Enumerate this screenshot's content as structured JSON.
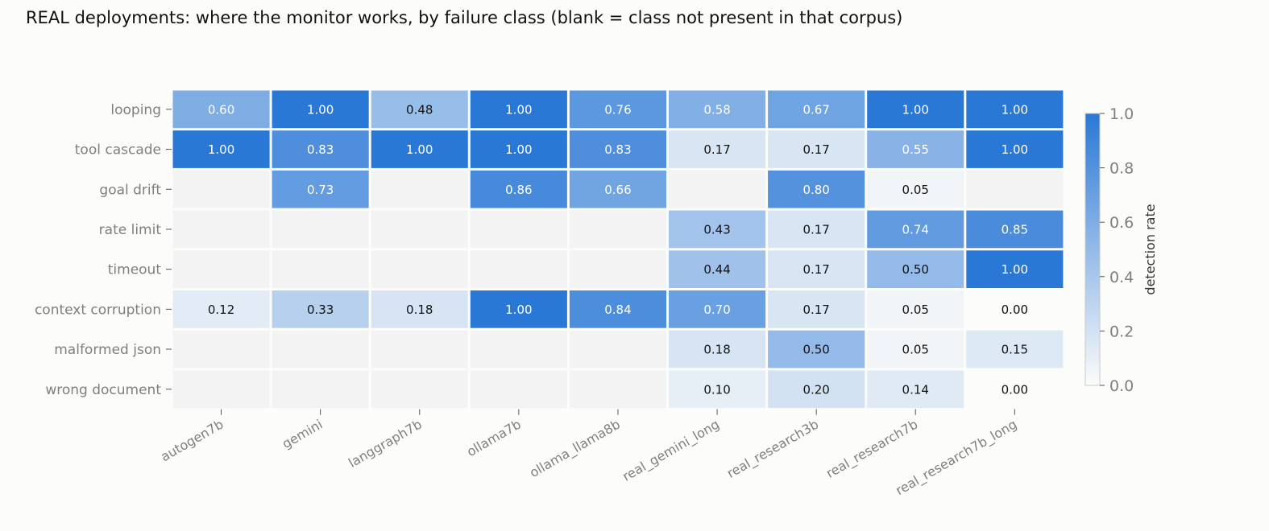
{
  "chart_data": {
    "type": "heatmap",
    "title": "REAL deployments: where the monitor works, by failure class (blank = class not present in that corpus)",
    "rows": [
      "looping",
      "tool cascade",
      "goal drift",
      "rate limit",
      "timeout",
      "context corruption",
      "malformed json",
      "wrong document"
    ],
    "columns": [
      "autogen7b",
      "gemini",
      "langgraph7b",
      "ollama7b",
      "ollama_llama8b",
      "real_gemini_long",
      "real_research3b",
      "real_research7b",
      "real_research7b_long"
    ],
    "values": [
      [
        0.6,
        1.0,
        0.48,
        1.0,
        0.76,
        0.58,
        0.67,
        1.0,
        1.0
      ],
      [
        1.0,
        0.83,
        1.0,
        1.0,
        0.83,
        0.17,
        0.17,
        0.55,
        1.0
      ],
      [
        null,
        0.73,
        null,
        0.86,
        0.66,
        null,
        0.8,
        0.05,
        null
      ],
      [
        null,
        null,
        null,
        null,
        null,
        0.43,
        0.17,
        0.74,
        0.85
      ],
      [
        null,
        null,
        null,
        null,
        null,
        0.44,
        0.17,
        0.5,
        1.0
      ],
      [
        0.12,
        0.33,
        0.18,
        1.0,
        0.84,
        0.7,
        0.17,
        0.05,
        0.0
      ],
      [
        null,
        null,
        null,
        null,
        null,
        0.18,
        0.5,
        0.05,
        0.15
      ],
      [
        null,
        null,
        null,
        null,
        null,
        0.1,
        0.2,
        0.14,
        0.0
      ]
    ],
    "colorbar": {
      "label": "detection rate",
      "range": [
        0,
        1
      ],
      "ticks": [
        0.0,
        0.2,
        0.4,
        0.6,
        0.8,
        1.0
      ],
      "low_color": "#fcfcfa",
      "high_color": "#2a78d6"
    },
    "blank_color": "#f3f3f3",
    "cell_border_color": "#ffffff",
    "axis_text_color": "#7f7f7f",
    "dark_text_color": "#111111",
    "light_text_color": "#ffffff"
  }
}
